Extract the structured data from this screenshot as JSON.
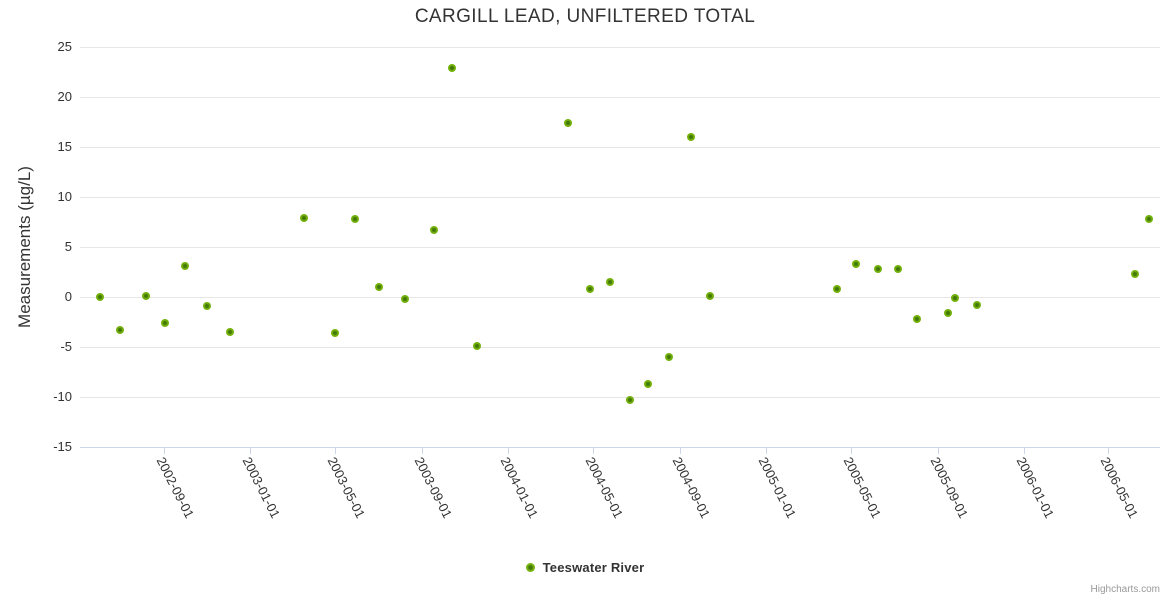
{
  "chart_data": {
    "type": "scatter",
    "title": "CARGILL LEAD, UNFILTERED TOTAL",
    "xlabel": "",
    "ylabel": "Measurements (µg/L)",
    "x_type": "datetime",
    "x_range": [
      "2002-05-05",
      "2006-07-13"
    ],
    "ylim": [
      -15,
      25
    ],
    "y_ticks": [
      25,
      20,
      15,
      10,
      5,
      0,
      -5,
      -10,
      -15
    ],
    "x_ticks": [
      "2002-09-01",
      "2003-01-01",
      "2003-05-01",
      "2003-09-01",
      "2004-01-01",
      "2004-05-01",
      "2004-09-01",
      "2005-01-01",
      "2005-05-01",
      "2005-09-01",
      "2006-01-01",
      "2006-05-01"
    ],
    "grid": "horizontal-only",
    "legend_position": "bottom-center",
    "series": [
      {
        "name": "Teeswater River",
        "marker": "circle",
        "points": [
          {
            "date": "2002-06-02",
            "value": 0.0
          },
          {
            "date": "2002-07-01",
            "value": -3.3
          },
          {
            "date": "2002-08-06",
            "value": 0.1
          },
          {
            "date": "2002-09-03",
            "value": -2.6
          },
          {
            "date": "2002-10-01",
            "value": 3.1
          },
          {
            "date": "2002-11-01",
            "value": -0.9
          },
          {
            "date": "2002-12-03",
            "value": -3.5
          },
          {
            "date": "2003-03-19",
            "value": 7.9
          },
          {
            "date": "2003-05-01",
            "value": -3.6
          },
          {
            "date": "2003-05-29",
            "value": 7.8
          },
          {
            "date": "2003-07-03",
            "value": 1.0
          },
          {
            "date": "2003-08-08",
            "value": -0.2
          },
          {
            "date": "2003-09-18",
            "value": 6.7
          },
          {
            "date": "2003-10-14",
            "value": 22.9
          },
          {
            "date": "2003-11-18",
            "value": -4.9
          },
          {
            "date": "2004-03-26",
            "value": 17.4
          },
          {
            "date": "2004-04-27",
            "value": 0.8
          },
          {
            "date": "2004-05-25",
            "value": 1.5
          },
          {
            "date": "2004-06-22",
            "value": -10.3
          },
          {
            "date": "2004-07-18",
            "value": -8.7
          },
          {
            "date": "2004-08-16",
            "value": -6.0
          },
          {
            "date": "2004-09-17",
            "value": 16.0
          },
          {
            "date": "2004-10-14",
            "value": 0.1
          },
          {
            "date": "2005-04-11",
            "value": 0.8
          },
          {
            "date": "2005-05-09",
            "value": 3.3
          },
          {
            "date": "2005-06-08",
            "value": 2.8
          },
          {
            "date": "2005-07-07",
            "value": 2.8
          },
          {
            "date": "2005-08-03",
            "value": -2.2
          },
          {
            "date": "2005-09-15",
            "value": -1.6
          },
          {
            "date": "2005-09-26",
            "value": -0.1
          },
          {
            "date": "2005-10-27",
            "value": -0.8
          },
          {
            "date": "2006-06-07",
            "value": 2.3
          },
          {
            "date": "2006-06-27",
            "value": 7.8
          }
        ]
      }
    ]
  },
  "colors": {
    "point_fill": "#74b20b",
    "point_core": "#44790a",
    "grid": "#e6e6e6",
    "axis": "#ccd6eb",
    "text": "#333333",
    "credits_text": "#999999"
  },
  "credits": "Highcharts.com"
}
